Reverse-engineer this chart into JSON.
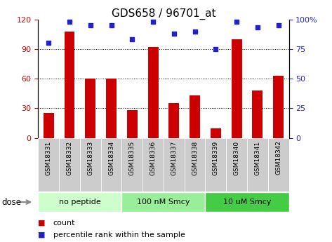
{
  "title": "GDS658 / 96701_at",
  "categories": [
    "GSM18331",
    "GSM18332",
    "GSM18333",
    "GSM18334",
    "GSM18335",
    "GSM18336",
    "GSM18337",
    "GSM18338",
    "GSM18339",
    "GSM18340",
    "GSM18341",
    "GSM18342"
  ],
  "bar_values": [
    25,
    108,
    60,
    60,
    28,
    92,
    35,
    43,
    10,
    100,
    48,
    63
  ],
  "dot_values": [
    80,
    98,
    95,
    95,
    83,
    98,
    88,
    90,
    75,
    98,
    93,
    95
  ],
  "bar_color": "#cc0000",
  "dot_color": "#2222cc",
  "ylim_left": [
    0,
    120
  ],
  "ylim_right": [
    0,
    100
  ],
  "yticks_left": [
    0,
    30,
    60,
    90,
    120
  ],
  "ytick_labels_right": [
    "0",
    "25",
    "50",
    "75",
    "100%"
  ],
  "yticks_right": [
    0,
    25,
    50,
    75,
    100
  ],
  "grid_values": [
    30,
    60,
    90
  ],
  "groups": [
    {
      "label": "no peptide",
      "start": 0,
      "end": 4,
      "color": "#ccffcc"
    },
    {
      "label": "100 nM Smcy",
      "start": 4,
      "end": 8,
      "color": "#99ee99"
    },
    {
      "label": "10 uM Smcy",
      "start": 8,
      "end": 12,
      "color": "#44cc44"
    }
  ],
  "dose_label": "dose",
  "legend_bar_label": "count",
  "legend_dot_label": "percentile rank within the sample",
  "title_fontsize": 11,
  "tick_fontsize": 8,
  "group_fontsize": 8,
  "legend_fontsize": 8,
  "tick_area_bg": "#cccccc",
  "bar_width": 0.5
}
